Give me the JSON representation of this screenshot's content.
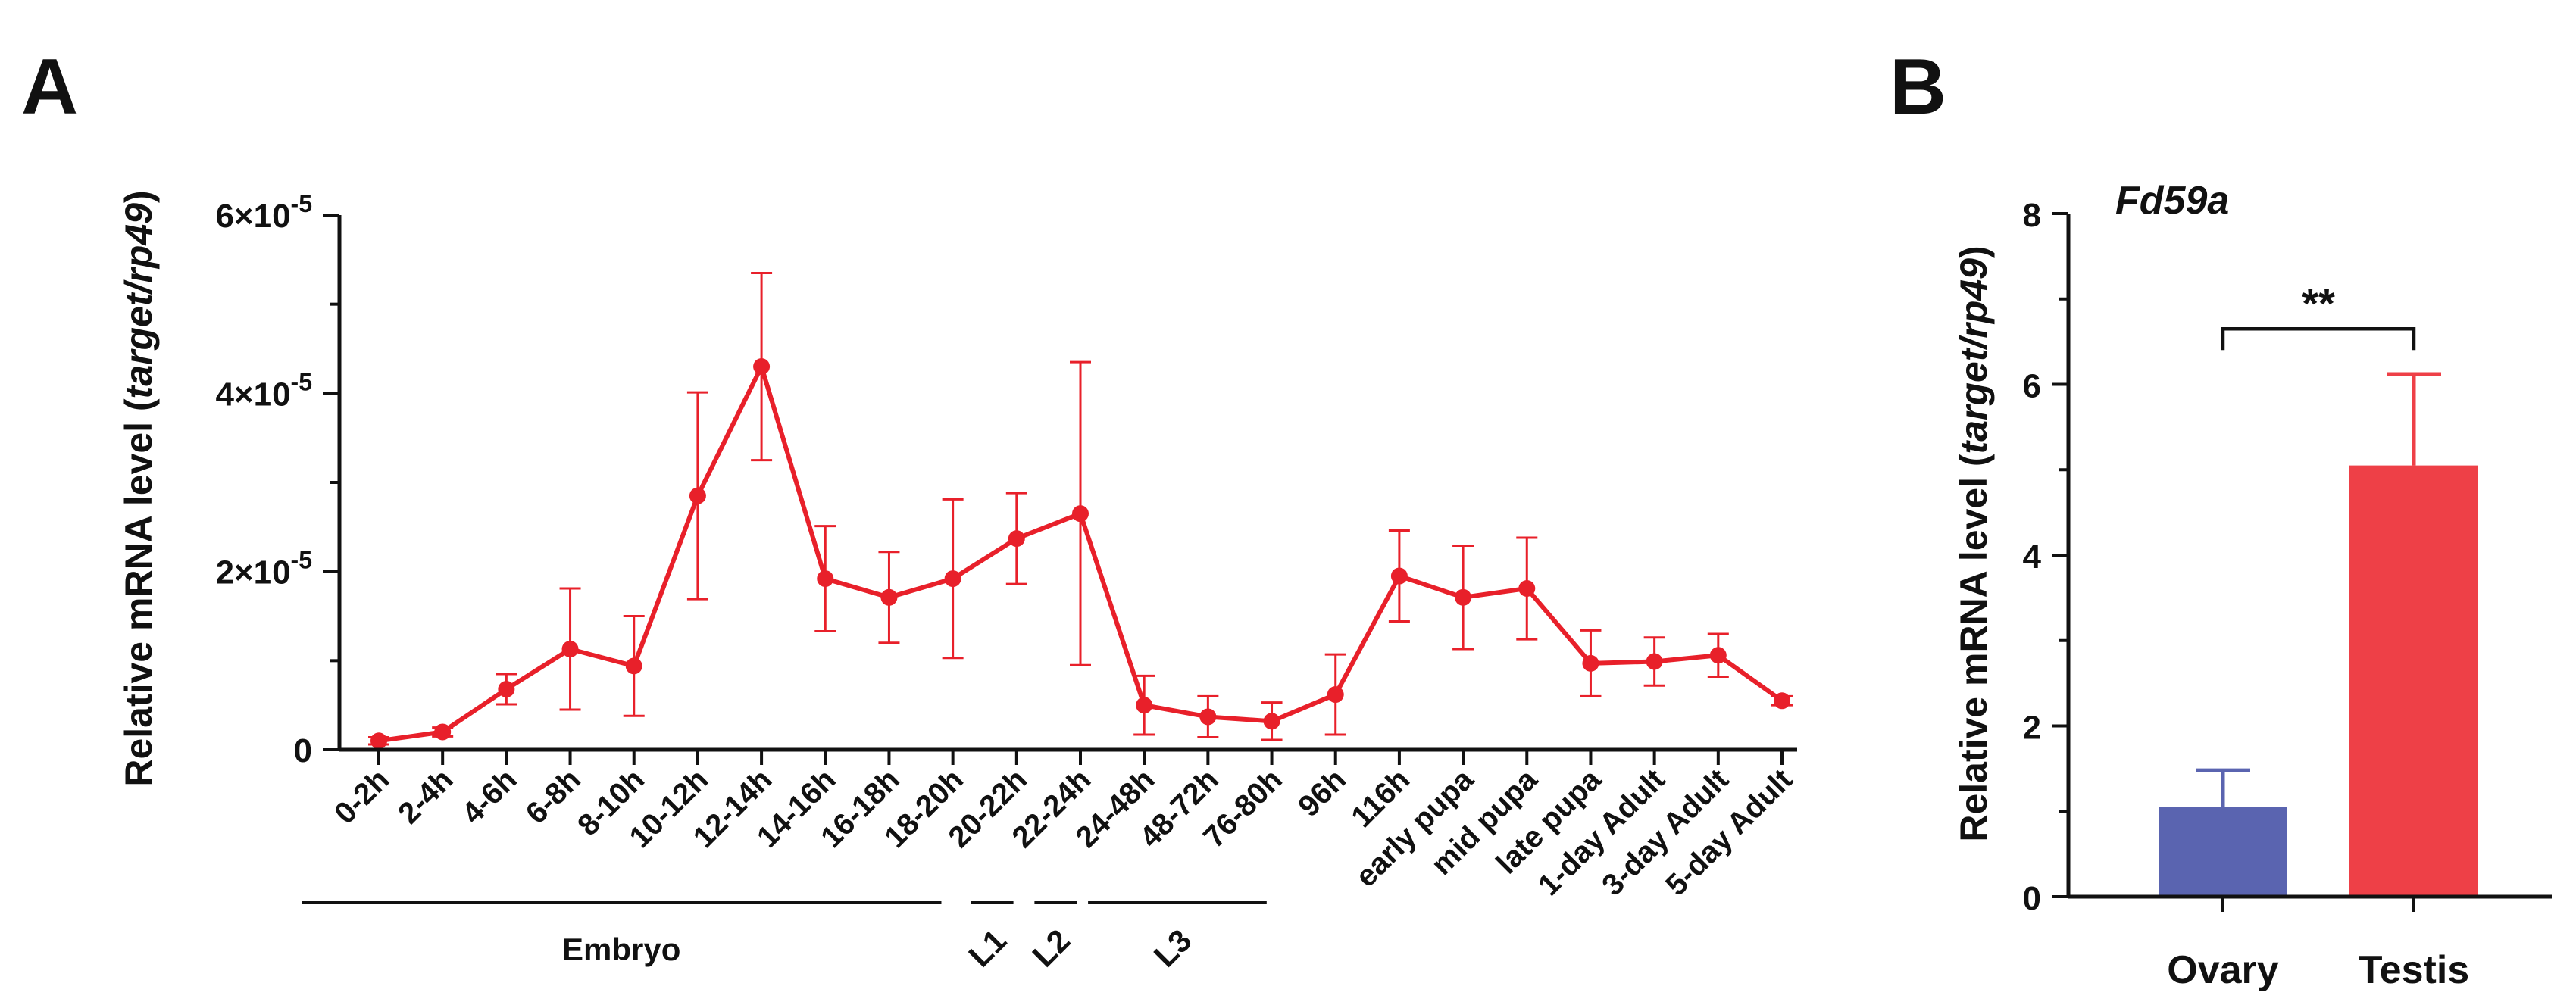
{
  "panels": {
    "a_letter": "A",
    "b_letter": "B"
  },
  "chart_data": [
    {
      "type": "line",
      "panel": "A",
      "title": "",
      "ylabel_prefix": "Relative mRNA level (",
      "ylabel_italic": "target/rp49",
      "ylabel_suffix": ")",
      "xlabel": "",
      "ylim": [
        0,
        6e-05
      ],
      "yticks": [
        {
          "value": 0,
          "label": "0",
          "sup": ""
        },
        {
          "value": 2e-05,
          "label": "2×10",
          "sup": "-5"
        },
        {
          "value": 4e-05,
          "label": "4×10",
          "sup": "-5"
        },
        {
          "value": 6e-05,
          "label": "6×10",
          "sup": "-5"
        }
      ],
      "color": "#e8202a",
      "categories": [
        "0-2h",
        "2-4h",
        "4-6h",
        "6-8h",
        "8-10h",
        "10-12h",
        "12-14h",
        "14-16h",
        "16-18h",
        "18-20h",
        "20-22h",
        "22-24h",
        "24-48h",
        "48-72h",
        "76-80h",
        "96h",
        "116h",
        "early pupa",
        "mid pupa",
        "late pupa",
        "1-day Adult",
        "3-day Adult",
        "5-day Adult"
      ],
      "series": [
        {
          "values": [
            1e-06,
            2e-06,
            6.8e-06,
            1.13e-05,
            9.4e-06,
            2.85e-05,
            4.3e-05,
            1.92e-05,
            1.71e-05,
            1.92e-05,
            2.37e-05,
            2.65e-05,
            5e-06,
            3.7e-06,
            3.2e-06,
            6.2e-06,
            1.95e-05,
            1.71e-05,
            1.81e-05,
            9.7e-06,
            9.9e-06,
            1.06e-05,
            5.5e-06
          ],
          "errors": [
            4e-07,
            5e-07,
            1.7e-06,
            6.8e-06,
            5.6e-06,
            1.16e-05,
            1.05e-05,
            5.9e-06,
            5.1e-06,
            8.9e-06,
            5.1e-06,
            1.7e-05,
            3.3e-06,
            2.3e-06,
            2.1e-06,
            4.5e-06,
            5.1e-06,
            5.8e-06,
            5.7e-06,
            3.7e-06,
            2.7e-06,
            2.4e-06,
            5e-07
          ]
        }
      ],
      "stage_groups": [
        {
          "label": "Embryo",
          "from": 0,
          "to": 8
        },
        {
          "label": "L1",
          "from": 9,
          "to": 9
        },
        {
          "label": "L2",
          "from": 10,
          "to": 10
        },
        {
          "label": "L3",
          "from": 11,
          "to": 13
        }
      ]
    },
    {
      "type": "bar",
      "panel": "B",
      "title": "Fd59a",
      "ylabel_prefix": "Relative mRNA level (",
      "ylabel_italic": "target/rp49",
      "ylabel_suffix": ")",
      "xlabel": "",
      "ylim": [
        0,
        8
      ],
      "yticks": [
        0,
        2,
        4,
        6,
        8
      ],
      "categories": [
        "Ovary",
        "Testis"
      ],
      "values": [
        1.05,
        5.05
      ],
      "errors": [
        0.43,
        1.07
      ],
      "colors": [
        "#5a64b0",
        "#ee4047"
      ],
      "significance": {
        "label": "**",
        "from": 0,
        "to": 1,
        "y": 6.65
      }
    }
  ]
}
